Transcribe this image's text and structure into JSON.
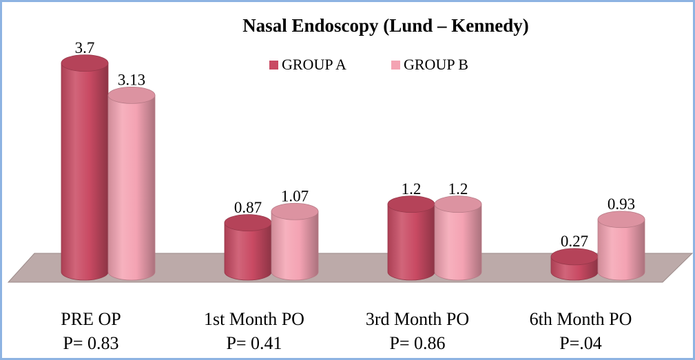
{
  "chart_data": {
    "type": "bar3d",
    "title": "Nasal Endoscopy (Lund – Kennedy)",
    "categories": [
      "PRE OP",
      "1st Month PO",
      "3rd Month PO",
      "6th Month PO"
    ],
    "category_notes": [
      "P= 0.83",
      "P= 0.41",
      "P= 0.86",
      "P=.04"
    ],
    "series": [
      {
        "name": "GROUP A",
        "color": "#c94a63",
        "values": [
          3.7,
          0.87,
          1.2,
          0.27
        ]
      },
      {
        "name": "GROUP B",
        "color": "#f4a3b3",
        "values": [
          3.13,
          1.07,
          1.2,
          0.93
        ]
      }
    ]
  }
}
